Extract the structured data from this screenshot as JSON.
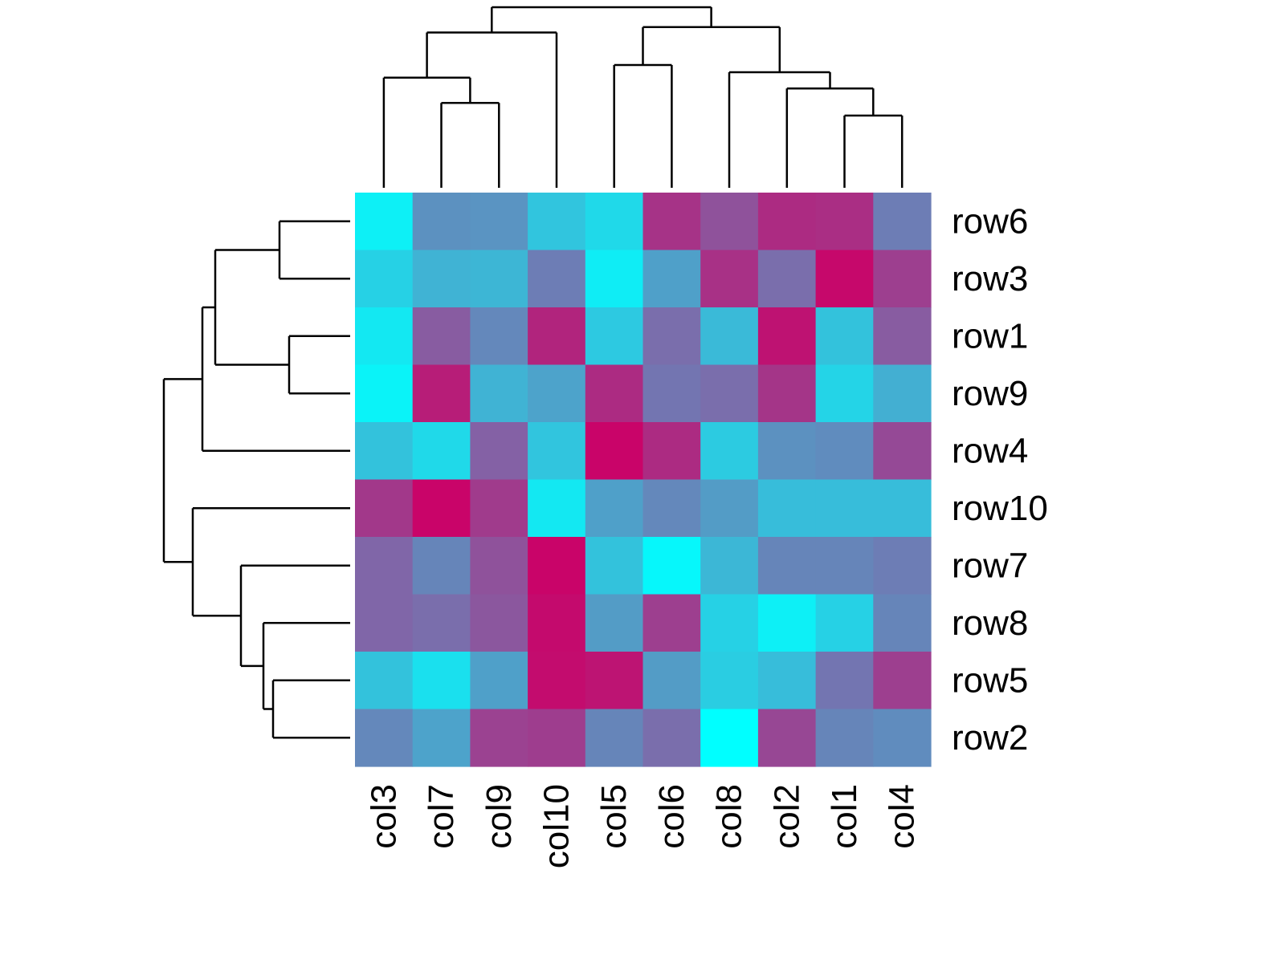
{
  "chart_data": {
    "type": "heatmap",
    "rows": [
      "row6",
      "row3",
      "row1",
      "row9",
      "row4",
      "row10",
      "row7",
      "row8",
      "row5",
      "row2"
    ],
    "columns": [
      "col3",
      "col7",
      "col9",
      "col10",
      "col5",
      "col6",
      "col8",
      "col2",
      "col1",
      "col4"
    ],
    "values": [
      [
        0.9,
        0.28,
        0.3,
        0.62,
        0.75,
        -0.5,
        -0.2,
        -0.58,
        -0.55,
        0.15
      ],
      [
        0.7,
        0.5,
        0.52,
        0.15,
        0.88,
        0.38,
        -0.52,
        0.05,
        -0.92,
        -0.38
      ],
      [
        0.85,
        -0.1,
        0.22,
        -0.65,
        0.65,
        0.05,
        0.55,
        -0.82,
        0.6,
        -0.1
      ],
      [
        0.92,
        -0.72,
        0.5,
        0.4,
        -0.58,
        0.1,
        0.05,
        -0.48,
        0.72,
        0.48
      ],
      [
        0.6,
        0.75,
        -0.05,
        0.62,
        -0.96,
        -0.58,
        0.66,
        0.28,
        0.25,
        -0.28
      ],
      [
        -0.45,
        -0.96,
        -0.42,
        0.85,
        0.38,
        0.22,
        0.35,
        0.57,
        0.57,
        0.57
      ],
      [
        0.0,
        0.2,
        -0.2,
        -0.96,
        0.6,
        0.95,
        0.53,
        0.2,
        0.2,
        0.15
      ],
      [
        0.0,
        0.05,
        -0.15,
        -0.9,
        0.35,
        -0.38,
        0.7,
        0.9,
        0.7,
        0.2
      ],
      [
        0.6,
        0.8,
        0.38,
        -0.88,
        -0.8,
        0.35,
        0.67,
        0.57,
        0.1,
        -0.38
      ],
      [
        0.22,
        0.4,
        -0.35,
        -0.4,
        0.2,
        0.05,
        1.0,
        -0.3,
        0.2,
        0.25
      ]
    ],
    "color_scale": {
      "low": "#cc0066",
      "mid": "#8066a8",
      "high": "#00ffff",
      "range": [
        -1,
        1
      ]
    },
    "row_dendrogram": {
      "merges": [
        [
          0,
          1
        ],
        [
          2,
          3
        ],
        [
          8,
          9
        ],
        [
          7,
          8
        ],
        [
          6,
          7
        ],
        [
          0,
          2
        ],
        [
          0,
          4
        ],
        [
          5,
          6
        ],
        [
          0,
          5
        ]
      ],
      "heights": [
        0.22,
        0.19,
        0.24,
        0.27,
        0.34,
        0.42,
        0.46,
        0.49,
        0.58
      ]
    },
    "column_dendrogram": {
      "merges": [
        [
          1,
          2
        ],
        [
          8,
          9
        ],
        [
          0,
          1
        ],
        [
          7,
          8
        ],
        [
          4,
          5
        ],
        [
          6,
          7
        ],
        [
          0,
          3
        ],
        [
          4,
          6
        ],
        [
          0,
          4
        ]
      ],
      "heights": [
        0.47,
        0.4,
        0.61,
        0.55,
        0.68,
        0.64,
        0.86,
        0.89,
        1.0
      ]
    }
  }
}
